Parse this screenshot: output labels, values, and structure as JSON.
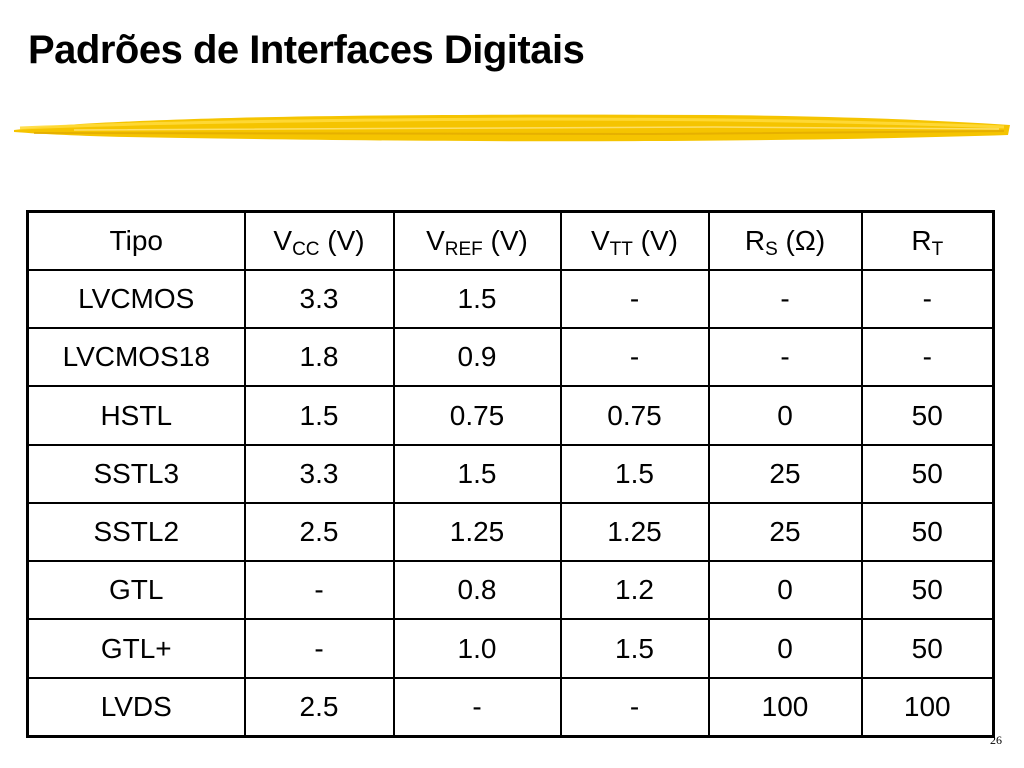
{
  "slide": {
    "title": "Padrões de Interfaces Digitais",
    "page_number": "26",
    "accent_color": "#F5C400"
  },
  "table": {
    "headers": [
      {
        "main": "Tipo",
        "sub": "",
        "unit": ""
      },
      {
        "main": "V",
        "sub": "CC",
        "unit": " (V)"
      },
      {
        "main": "V",
        "sub": "REF",
        "unit": " (V)"
      },
      {
        "main": "V",
        "sub": "TT",
        "unit": " (V)"
      },
      {
        "main": "R",
        "sub": "S",
        "unit": " (Ω)"
      },
      {
        "main": "R",
        "sub": "T",
        "unit": ""
      }
    ],
    "rows": [
      [
        "LVCMOS",
        "3.3",
        "1.5",
        "-",
        "-",
        "-"
      ],
      [
        "LVCMOS18",
        "1.8",
        "0.9",
        "-",
        "-",
        "-"
      ],
      [
        "HSTL",
        "1.5",
        "0.75",
        "0.75",
        "0",
        "50"
      ],
      [
        "SSTL3",
        "3.3",
        "1.5",
        "1.5",
        "25",
        "50"
      ],
      [
        "SSTL2",
        "2.5",
        "1.25",
        "1.25",
        "25",
        "50"
      ],
      [
        "GTL",
        "-",
        "0.8",
        "1.2",
        "0",
        "50"
      ],
      [
        "GTL+",
        "-",
        "1.0",
        "1.5",
        "0",
        "50"
      ],
      [
        "LVDS",
        "2.5",
        "-",
        "-",
        "100",
        "100"
      ]
    ]
  }
}
